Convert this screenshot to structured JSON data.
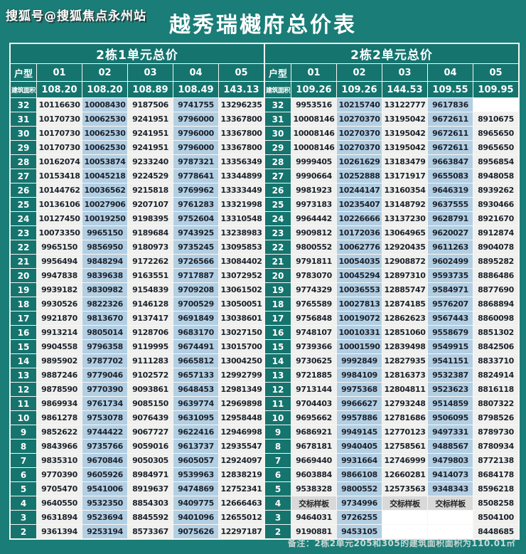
{
  "page": {
    "watermark": "搜狐号@搜狐焦点永州站",
    "title": "越秀瑞樾府总价表",
    "note": "备注：2栋2单元205和305的建筑面积面积为110.01㎡"
  },
  "colors": {
    "background": "#1a7d77",
    "header_cell": "#15746e",
    "cell_light": "#f0f1ee",
    "cell_blue": "#b3cfe3",
    "cell_sample": "#d9d9d9",
    "cell_empty": "#ffffff",
    "text_dark": "#1c222c"
  },
  "tables": [
    {
      "section_title": "2栋1单元总价",
      "unit_type_label": "户型",
      "area_label": "建筑面积",
      "columns": [
        "01",
        "02",
        "03",
        "04",
        "05"
      ],
      "areas": [
        "108.20",
        "108.20",
        "108.89",
        "108.49",
        "143.13"
      ],
      "rows": [
        {
          "floor": "32",
          "values": [
            "10116630",
            "10008430",
            "9187506",
            "9741755",
            "13296235"
          ]
        },
        {
          "floor": "31",
          "values": [
            "10170730",
            "10062530",
            "9241951",
            "9796000",
            "13367800"
          ]
        },
        {
          "floor": "30",
          "values": [
            "10170730",
            "10062530",
            "9241951",
            "9796000",
            "13367800"
          ]
        },
        {
          "floor": "29",
          "values": [
            "10170730",
            "10062530",
            "9241951",
            "9796000",
            "13367800"
          ]
        },
        {
          "floor": "28",
          "values": [
            "10162074",
            "10053874",
            "9233240",
            "9787321",
            "13356349"
          ]
        },
        {
          "floor": "27",
          "values": [
            "10153418",
            "10045218",
            "9224529",
            "9778641",
            "13344899"
          ]
        },
        {
          "floor": "26",
          "values": [
            "10144762",
            "10036562",
            "9215818",
            "9769962",
            "13333449"
          ]
        },
        {
          "floor": "25",
          "values": [
            "10136106",
            "10027906",
            "9207107",
            "9761283",
            "13321998"
          ]
        },
        {
          "floor": "24",
          "values": [
            "10127450",
            "10019250",
            "9198395",
            "9752604",
            "13310548"
          ]
        },
        {
          "floor": "23",
          "values": [
            "10073350",
            "9965150",
            "9189684",
            "9743925",
            "13238983"
          ]
        },
        {
          "floor": "22",
          "values": [
            "9965150",
            "9856950",
            "9180973",
            "9735245",
            "13095853"
          ]
        },
        {
          "floor": "21",
          "values": [
            "9956494",
            "9848294",
            "9172262",
            "9726566",
            "13084402"
          ]
        },
        {
          "floor": "20",
          "values": [
            "9947838",
            "9839638",
            "9163551",
            "9717887",
            "13072952"
          ]
        },
        {
          "floor": "19",
          "values": [
            "9939182",
            "9830982",
            "9154839",
            "9709208",
            "13061502"
          ]
        },
        {
          "floor": "18",
          "values": [
            "9930526",
            "9822326",
            "9146128",
            "9700529",
            "13050051"
          ]
        },
        {
          "floor": "17",
          "values": [
            "9921870",
            "9813670",
            "9137417",
            "9691849",
            "13038601"
          ]
        },
        {
          "floor": "16",
          "values": [
            "9913214",
            "9805014",
            "9128706",
            "9683170",
            "13027150"
          ]
        },
        {
          "floor": "15",
          "values": [
            "9904558",
            "9796358",
            "9119995",
            "9674491",
            "13015700"
          ]
        },
        {
          "floor": "14",
          "values": [
            "9895902",
            "9787702",
            "9111283",
            "9665812",
            "13004250"
          ]
        },
        {
          "floor": "13",
          "values": [
            "9887246",
            "9779046",
            "9102572",
            "9657133",
            "12992799"
          ]
        },
        {
          "floor": "12",
          "values": [
            "9878590",
            "9770390",
            "9093861",
            "9648453",
            "12981349"
          ]
        },
        {
          "floor": "11",
          "values": [
            "9869934",
            "9761734",
            "9085150",
            "9639774",
            "12969898"
          ]
        },
        {
          "floor": "10",
          "values": [
            "9861278",
            "9753078",
            "9076439",
            "9631095",
            "12958448"
          ]
        },
        {
          "floor": "9",
          "values": [
            "9852622",
            "9744422",
            "9067727",
            "9622416",
            "12946998"
          ]
        },
        {
          "floor": "8",
          "values": [
            "9843966",
            "9735766",
            "9059016",
            "9613737",
            "12935547"
          ]
        },
        {
          "floor": "7",
          "values": [
            "9835310",
            "9670846",
            "9050305",
            "9605057",
            "12924097"
          ]
        },
        {
          "floor": "6",
          "values": [
            "9770390",
            "9605926",
            "8984971",
            "9539963",
            "12838219"
          ]
        },
        {
          "floor": "5",
          "values": [
            "9705470",
            "9541006",
            "8919637",
            "9474869",
            "12752341"
          ]
        },
        {
          "floor": "4",
          "values": [
            "9640550",
            "9532350",
            "8854303",
            "9409775",
            "12666463"
          ]
        },
        {
          "floor": "3",
          "values": [
            "9631894",
            "9523694",
            "8845592",
            "9401096",
            "12655012"
          ]
        },
        {
          "floor": "2",
          "values": [
            "9361394",
            "9253194",
            "8573367",
            "9075626",
            "12297187"
          ]
        }
      ]
    },
    {
      "section_title": "2栋2单元总价",
      "unit_type_label": "户型",
      "area_label": "建筑面积",
      "columns": [
        "01",
        "02",
        "03",
        "04",
        "05"
      ],
      "areas": [
        "109.26",
        "109.26",
        "144.53",
        "109.55",
        "109.95"
      ],
      "rows": [
        {
          "floor": "32",
          "values": [
            "9953516",
            "10215740",
            "13122777",
            "9617836",
            ""
          ]
        },
        {
          "floor": "31",
          "values": [
            "10008146",
            "10270370",
            "13195042",
            "9672611",
            "8910675"
          ]
        },
        {
          "floor": "30",
          "values": [
            "10008146",
            "10270370",
            "13195042",
            "9672611",
            "8965650"
          ]
        },
        {
          "floor": "29",
          "values": [
            "10008146",
            "10270370",
            "13195042",
            "9672611",
            "8965650"
          ]
        },
        {
          "floor": "28",
          "values": [
            "9999405",
            "10261629",
            "13183479",
            "9663847",
            "8956854"
          ]
        },
        {
          "floor": "27",
          "values": [
            "9990664",
            "10252888",
            "13171917",
            "9655083",
            "8948058"
          ]
        },
        {
          "floor": "26",
          "values": [
            "9981923",
            "10244147",
            "13160354",
            "9646319",
            "8939262"
          ]
        },
        {
          "floor": "25",
          "values": [
            "9973183",
            "10235407",
            "13148792",
            "9637555",
            "8930466"
          ]
        },
        {
          "floor": "24",
          "values": [
            "9964442",
            "10226666",
            "13137230",
            "9628791",
            "8921670"
          ]
        },
        {
          "floor": "23",
          "values": [
            "9909812",
            "10172036",
            "13064965",
            "9620027",
            "8912874"
          ]
        },
        {
          "floor": "22",
          "values": [
            "9800552",
            "10062776",
            "12920435",
            "9611263",
            "8904078"
          ]
        },
        {
          "floor": "21",
          "values": [
            "9791811",
            "10054035",
            "12908872",
            "9602499",
            "8895282"
          ]
        },
        {
          "floor": "20",
          "values": [
            "9783070",
            "10045294",
            "12897310",
            "9593735",
            "8886486"
          ]
        },
        {
          "floor": "19",
          "values": [
            "9774329",
            "10036553",
            "12885747",
            "9584971",
            "8877690"
          ]
        },
        {
          "floor": "18",
          "values": [
            "9765589",
            "10027813",
            "12874185",
            "9576207",
            "8868894"
          ]
        },
        {
          "floor": "17",
          "values": [
            "9756848",
            "10019072",
            "12862623",
            "9567443",
            "8860098"
          ]
        },
        {
          "floor": "16",
          "values": [
            "9748107",
            "10010331",
            "12851060",
            "9558679",
            "8851302"
          ]
        },
        {
          "floor": "15",
          "values": [
            "9739366",
            "10001590",
            "12839498",
            "9549915",
            "8842506"
          ]
        },
        {
          "floor": "14",
          "values": [
            "9730625",
            "9992849",
            "12827935",
            "9541151",
            "8833710"
          ]
        },
        {
          "floor": "13",
          "values": [
            "9721885",
            "9984109",
            "12816373",
            "9532387",
            "8824914"
          ]
        },
        {
          "floor": "12",
          "values": [
            "9713144",
            "9975368",
            "12804811",
            "9523623",
            "8816118"
          ]
        },
        {
          "floor": "11",
          "values": [
            "9704403",
            "9966627",
            "12793248",
            "9514859",
            "8807322"
          ]
        },
        {
          "floor": "10",
          "values": [
            "9695662",
            "9957886",
            "12781686",
            "9506095",
            "8798526"
          ]
        },
        {
          "floor": "9",
          "values": [
            "9686921",
            "9949145",
            "12770123",
            "9497331",
            "8789730"
          ]
        },
        {
          "floor": "8",
          "values": [
            "9678181",
            "9940405",
            "12758561",
            "9488567",
            "8780934"
          ]
        },
        {
          "floor": "7",
          "values": [
            "9669440",
            "9931664",
            "12746999",
            "9479803",
            "8772138"
          ]
        },
        {
          "floor": "6",
          "values": [
            "9603884",
            "9866108",
            "12660281",
            "9414073",
            "8684178"
          ]
        },
        {
          "floor": "5",
          "values": [
            "9538328",
            "9800552",
            "12573563",
            "9348343",
            "8596218"
          ]
        },
        {
          "floor": "4",
          "values": [
            "交标样板",
            "9734996",
            "交标样板",
            "交标样板",
            "8508258"
          ]
        },
        {
          "floor": "3",
          "values": [
            "9464031",
            "9726255",
            "",
            "",
            "8504100"
          ]
        },
        {
          "floor": "2",
          "values": [
            "9190881",
            "9453105",
            "",
            "",
            "8448685"
          ]
        }
      ]
    }
  ]
}
